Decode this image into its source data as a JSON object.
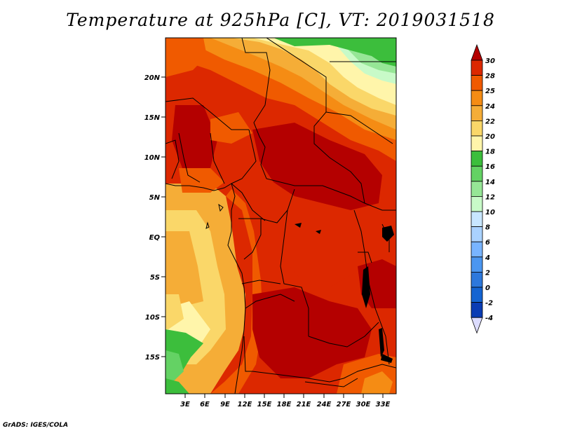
{
  "title": "Temperature at 925hPa [C], VT: 2019031518",
  "footer": "GrADS: IGES/COLA",
  "map": {
    "lat_labels": [
      "20N",
      "15N",
      "10N",
      "5N",
      "EQ",
      "5S",
      "10S",
      "15S"
    ],
    "lon_labels": [
      "3E",
      "6E",
      "9E",
      "12E",
      "15E",
      "18E",
      "21E",
      "24E",
      "27E",
      "30E",
      "33E"
    ]
  },
  "colorbar": {
    "labels": [
      "30",
      "28",
      "25",
      "24",
      "22",
      "20",
      "18",
      "16",
      "14",
      "12",
      "10",
      "8",
      "6",
      "4",
      "2",
      "0",
      "-2",
      "-4"
    ],
    "colors": [
      "#b40000",
      "#dc2800",
      "#f05a00",
      "#f58c14",
      "#f5ad37",
      "#fad769",
      "#fff5aa",
      "#3cbe3c",
      "#64d264",
      "#96e696",
      "#c8fac8",
      "#c8e6ff",
      "#aad2ff",
      "#78b4ff",
      "#4b96f0",
      "#2d78dc",
      "#1464d2",
      "#0a3cb4",
      "#000078",
      "#dcdcff"
    ]
  }
}
